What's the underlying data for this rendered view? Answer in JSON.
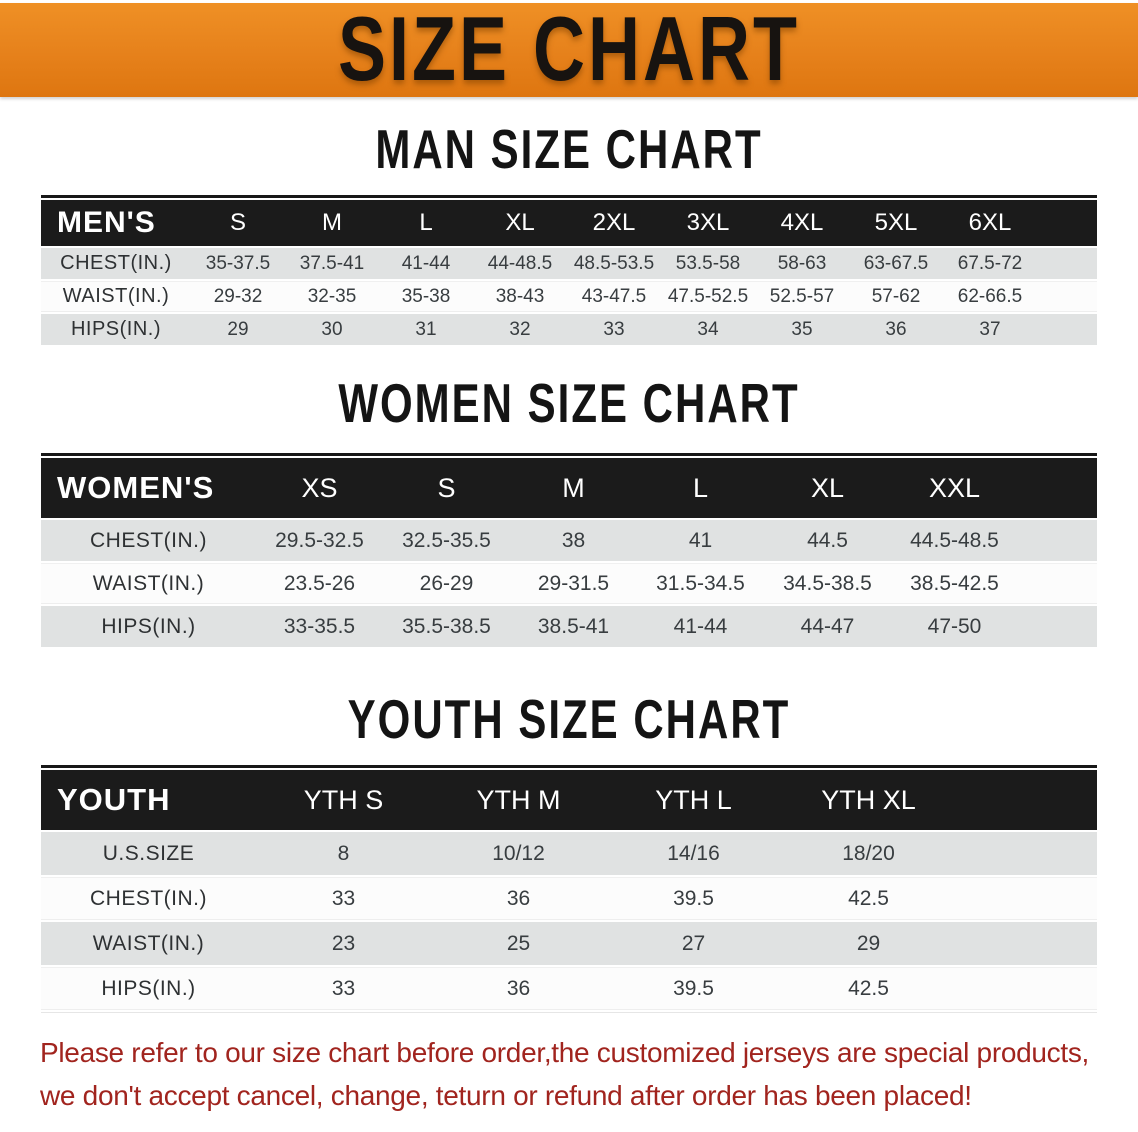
{
  "banner": {
    "title": "SIZE CHART"
  },
  "sections": [
    {
      "heading": "MAN SIZE CHART",
      "header_label": "MEN'S",
      "columns": [
        "S",
        "M",
        "L",
        "XL",
        "2XL",
        "3XL",
        "4XL",
        "5XL",
        "6XL"
      ],
      "rows": [
        {
          "label": "CHEST(IN.)",
          "values": [
            "35-37.5",
            "37.5-41",
            "41-44",
            "44-48.5",
            "48.5-53.5",
            "53.5-58",
            "58-63",
            "63-67.5",
            "67.5-72"
          ]
        },
        {
          "label": "WAIST(IN.)",
          "values": [
            "29-32",
            "32-35",
            "35-38",
            "38-43",
            "43-47.5",
            "47.5-52.5",
            "52.5-57",
            "57-62",
            "62-66.5"
          ]
        },
        {
          "label": "HIPS(IN.)",
          "values": [
            "29",
            "30",
            "31",
            "32",
            "33",
            "34",
            "35",
            "36",
            "37"
          ]
        }
      ]
    },
    {
      "heading": "WOMEN SIZE CHART",
      "header_label": "WOMEN'S",
      "columns": [
        "XS",
        "S",
        "M",
        "L",
        "XL",
        "XXL"
      ],
      "rows": [
        {
          "label": "CHEST(IN.)",
          "values": [
            "29.5-32.5",
            "32.5-35.5",
            "38",
            "41",
            "44.5",
            "44.5-48.5"
          ]
        },
        {
          "label": "WAIST(IN.)",
          "values": [
            "23.5-26",
            "26-29",
            "29-31.5",
            "31.5-34.5",
            "34.5-38.5",
            "38.5-42.5"
          ]
        },
        {
          "label": "HIPS(IN.)",
          "values": [
            "33-35.5",
            "35.5-38.5",
            "38.5-41",
            "41-44",
            "44-47",
            "47-50"
          ]
        }
      ]
    },
    {
      "heading": "YOUTH SIZE CHART",
      "header_label": "YOUTH",
      "columns": [
        "YTH S",
        "YTH M",
        "YTH L",
        "YTH XL"
      ],
      "rows": [
        {
          "label": "U.S.SIZE",
          "values": [
            "8",
            "10/12",
            "14/16",
            "18/20"
          ]
        },
        {
          "label": "CHEST(IN.)",
          "values": [
            "33",
            "36",
            "39.5",
            "42.5"
          ]
        },
        {
          "label": "WAIST(IN.)",
          "values": [
            "23",
            "25",
            "27",
            "29"
          ]
        },
        {
          "label": "HIPS(IN.)",
          "values": [
            "33",
            "36",
            "39.5",
            "42.5"
          ]
        }
      ]
    }
  ],
  "disclaimer": {
    "line1": "Please refer to our size chart before order,the customized jerseys are special products,",
    "line2": "we don't accept cancel, change, teturn or refund after order has been placed!"
  },
  "colors": {
    "accent-orange": "#e6811b",
    "header-black": "#1b1b1b",
    "row-gray": "#e0e2e2",
    "row-white": "#fcfcfc",
    "disclaimer-red": "#a1241e"
  }
}
